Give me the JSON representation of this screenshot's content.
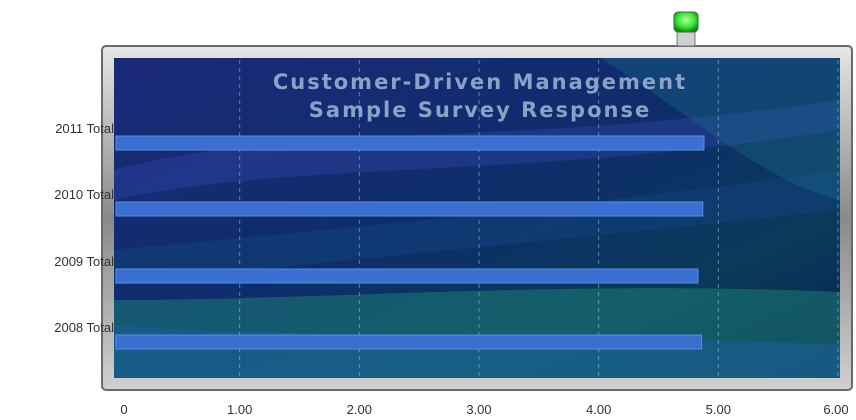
{
  "chart_data": {
    "type": "bar",
    "orientation": "horizontal",
    "title": [
      "Customer-Driven Management",
      "Sample Survey Response"
    ],
    "categories": [
      "2011 Total",
      "2010 Total",
      "2009 Total",
      "2008 Total"
    ],
    "values": [
      4.88,
      4.87,
      4.83,
      4.86
    ],
    "xlim": [
      0,
      6
    ],
    "xticks": [
      "0",
      "1.00",
      "2.00",
      "3.00",
      "4.00",
      "5.00",
      "6.00"
    ],
    "grid": true,
    "legend": "none",
    "colors": {
      "bar": "#3a6fd0",
      "background": "#0f2a6e",
      "accent": "#1f8c7a",
      "led": "#39e639"
    }
  }
}
